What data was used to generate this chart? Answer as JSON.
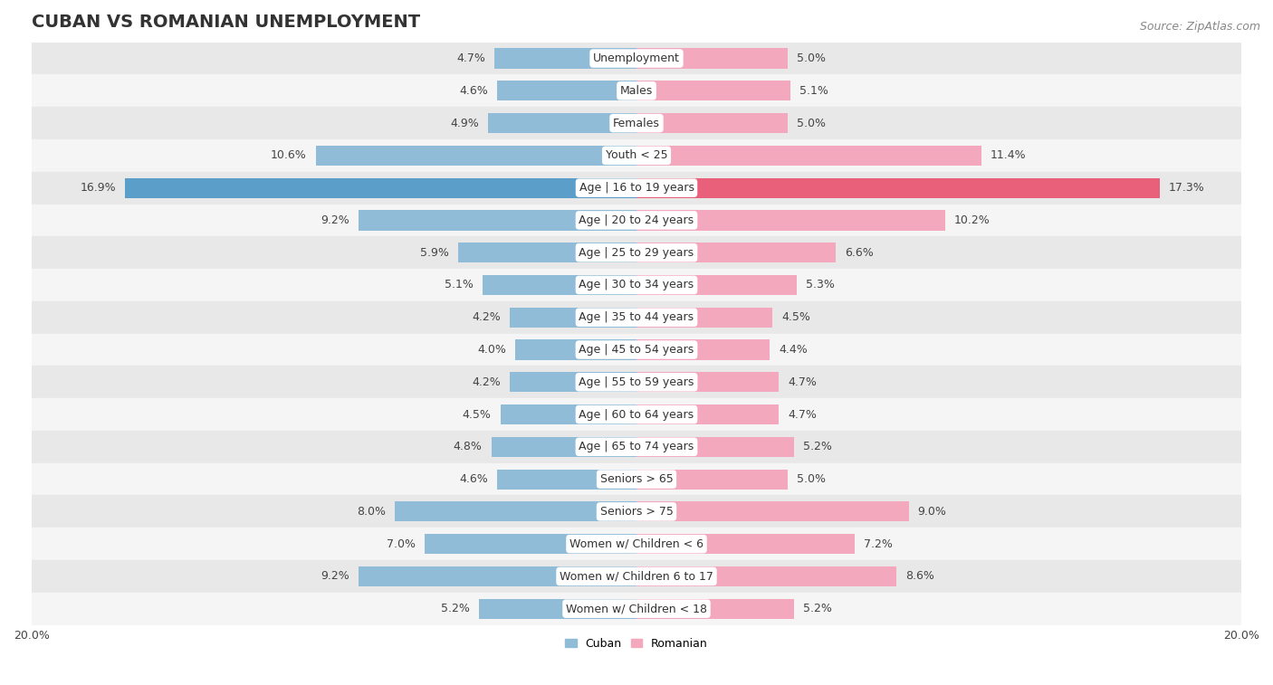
{
  "title": "CUBAN VS ROMANIAN UNEMPLOYMENT",
  "source": "Source: ZipAtlas.com",
  "categories": [
    "Unemployment",
    "Males",
    "Females",
    "Youth < 25",
    "Age | 16 to 19 years",
    "Age | 20 to 24 years",
    "Age | 25 to 29 years",
    "Age | 30 to 34 years",
    "Age | 35 to 44 years",
    "Age | 45 to 54 years",
    "Age | 55 to 59 years",
    "Age | 60 to 64 years",
    "Age | 65 to 74 years",
    "Seniors > 65",
    "Seniors > 75",
    "Women w/ Children < 6",
    "Women w/ Children 6 to 17",
    "Women w/ Children < 18"
  ],
  "cuban": [
    4.7,
    4.6,
    4.9,
    10.6,
    16.9,
    9.2,
    5.9,
    5.1,
    4.2,
    4.0,
    4.2,
    4.5,
    4.8,
    4.6,
    8.0,
    7.0,
    9.2,
    5.2
  ],
  "romanian": [
    5.0,
    5.1,
    5.0,
    11.4,
    17.3,
    10.2,
    6.6,
    5.3,
    4.5,
    4.4,
    4.7,
    4.7,
    5.2,
    5.0,
    9.0,
    7.2,
    8.6,
    5.2
  ],
  "cuban_color": "#90bcd8",
  "romanian_color": "#f4a8be",
  "highlight_cuban_color": "#5b9ec9",
  "highlight_romanian_color": "#e8607a",
  "highlight_rows": [
    4
  ],
  "bg_color_odd": "#e8e8e8",
  "bg_color_even": "#f5f5f5",
  "bar_height": 0.62,
  "xlim": 20.0,
  "legend_cuban": "Cuban",
  "legend_romanian": "Romanian",
  "title_fontsize": 14,
  "source_fontsize": 9,
  "label_fontsize": 9,
  "category_fontsize": 9,
  "axis_label_fontsize": 9
}
